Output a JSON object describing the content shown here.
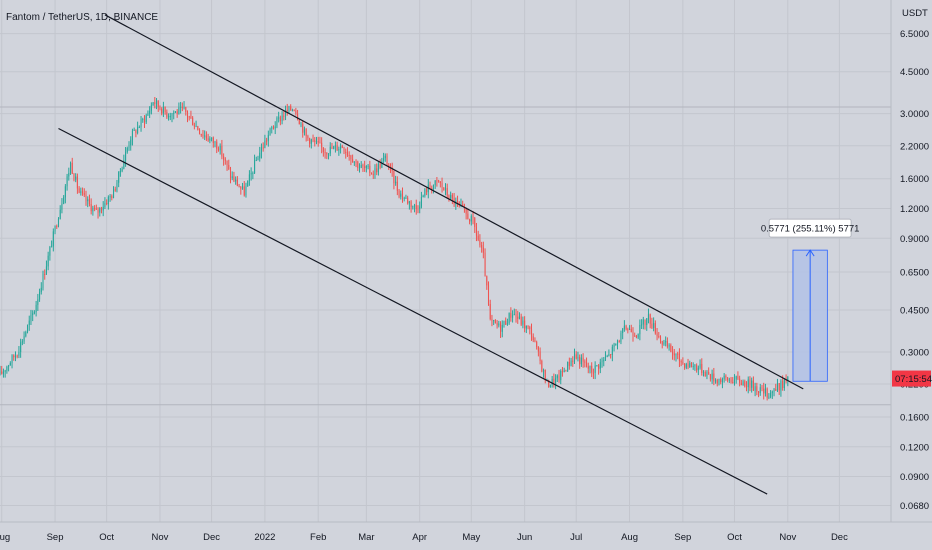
{
  "header": {
    "title": "Fantom / TetherUS, 1D, BINANCE",
    "currency": "USDT"
  },
  "price_tag": {
    "value": "07:15:54",
    "color": "#f23645"
  },
  "measure": {
    "label": "0.5771 (255.11%) 5771",
    "fill": "#b3c2e6",
    "line": "#2962ff"
  },
  "colors": {
    "background": "#d1d4dc",
    "grid": "#c3c6ce",
    "up": "#26a69a",
    "down": "#ef5350",
    "channel": "#131722"
  },
  "chart_data": {
    "type": "candlestick",
    "title": "Fantom / TetherUS, 1D, BINANCE",
    "y_scale": "log",
    "y_ticks": [
      "6.5000",
      "4.5000",
      "3.0000",
      "2.2000",
      "1.6000",
      "1.2000",
      "0.9000",
      "0.6500",
      "0.4500",
      "0.3000",
      "0.2200",
      "0.1600",
      "0.1200",
      "0.0900",
      "0.0680"
    ],
    "y_tick_values": [
      6.5,
      4.5,
      3.0,
      2.2,
      1.6,
      1.2,
      0.9,
      0.65,
      0.45,
      0.3,
      0.22,
      0.16,
      0.12,
      0.09,
      0.068
    ],
    "x_ticks": [
      "Aug",
      "Sep",
      "Oct",
      "Nov",
      "Dec",
      "2022",
      "Feb",
      "Mar",
      "Apr",
      "May",
      "Jun",
      "Jul",
      "Aug",
      "Sep",
      "Oct",
      "Nov",
      "Dec"
    ],
    "x_tick_dates": [
      "2021-08-01",
      "2021-09-01",
      "2021-10-01",
      "2021-11-01",
      "2021-12-01",
      "2022-01-01",
      "2022-02-01",
      "2022-03-01",
      "2022-04-01",
      "2022-05-01",
      "2022-06-01",
      "2022-07-01",
      "2022-08-01",
      "2022-09-01",
      "2022-10-01",
      "2022-11-01",
      "2022-12-01"
    ],
    "x_range": [
      "2021-07-31",
      "2022-12-31"
    ],
    "y_range": [
      0.058,
      9.0
    ],
    "price_path": [
      [
        "2021-07-31",
        0.24
      ],
      [
        "2021-08-10",
        0.3
      ],
      [
        "2021-08-20",
        0.45
      ],
      [
        "2021-08-28",
        0.75
      ],
      [
        "2021-09-05",
        1.3
      ],
      [
        "2021-09-10",
        1.85
      ],
      [
        "2021-09-15",
        1.4
      ],
      [
        "2021-09-25",
        1.15
      ],
      [
        "2021-10-05",
        1.4
      ],
      [
        "2021-10-15",
        2.4
      ],
      [
        "2021-10-25",
        3.0
      ],
      [
        "2021-10-28",
        3.4
      ],
      [
        "2021-11-05",
        3.0
      ],
      [
        "2021-11-15",
        3.1
      ],
      [
        "2021-11-25",
        2.5
      ],
      [
        "2021-12-05",
        2.2
      ],
      [
        "2021-12-12",
        1.65
      ],
      [
        "2021-12-20",
        1.4
      ],
      [
        "2021-12-28",
        2.0
      ],
      [
        "2022-01-05",
        2.6
      ],
      [
        "2022-01-12",
        3.0
      ],
      [
        "2022-01-18",
        3.2
      ],
      [
        "2022-01-25",
        2.4
      ],
      [
        "2022-02-05",
        2.1
      ],
      [
        "2022-02-15",
        2.2
      ],
      [
        "2022-02-25",
        1.8
      ],
      [
        "2022-03-05",
        1.7
      ],
      [
        "2022-03-12",
        1.95
      ],
      [
        "2022-03-20",
        1.4
      ],
      [
        "2022-03-30",
        1.2
      ],
      [
        "2022-04-05",
        1.45
      ],
      [
        "2022-04-12",
        1.55
      ],
      [
        "2022-04-18",
        1.35
      ],
      [
        "2022-04-25",
        1.2
      ],
      [
        "2022-05-02",
        1.05
      ],
      [
        "2022-05-08",
        0.75
      ],
      [
        "2022-05-12",
        0.4
      ],
      [
        "2022-05-18",
        0.38
      ],
      [
        "2022-05-25",
        0.44
      ],
      [
        "2022-06-05",
        0.36
      ],
      [
        "2022-06-14",
        0.22
      ],
      [
        "2022-06-20",
        0.23
      ],
      [
        "2022-06-30",
        0.29
      ],
      [
        "2022-07-10",
        0.25
      ],
      [
        "2022-07-20",
        0.29
      ],
      [
        "2022-07-30",
        0.38
      ],
      [
        "2022-08-05",
        0.36
      ],
      [
        "2022-08-12",
        0.42
      ],
      [
        "2022-08-20",
        0.33
      ],
      [
        "2022-09-01",
        0.27
      ],
      [
        "2022-09-10",
        0.26
      ],
      [
        "2022-09-20",
        0.23
      ],
      [
        "2022-09-30",
        0.23
      ],
      [
        "2022-10-10",
        0.22
      ],
      [
        "2022-10-20",
        0.2
      ],
      [
        "2022-10-25",
        0.21
      ],
      [
        "2022-11-01",
        0.23
      ]
    ],
    "trendlines": [
      {
        "name": "upper-channel",
        "from": [
          "2021-09-30",
          7.8
        ],
        "to": [
          "2022-11-10",
          0.21
        ]
      },
      {
        "name": "lower-channel",
        "from": [
          "2021-09-03",
          2.6
        ],
        "to": [
          "2022-10-20",
          0.076
        ]
      }
    ],
    "horizontal_lines": [
      3.2,
      0.18
    ],
    "grid": true
  }
}
